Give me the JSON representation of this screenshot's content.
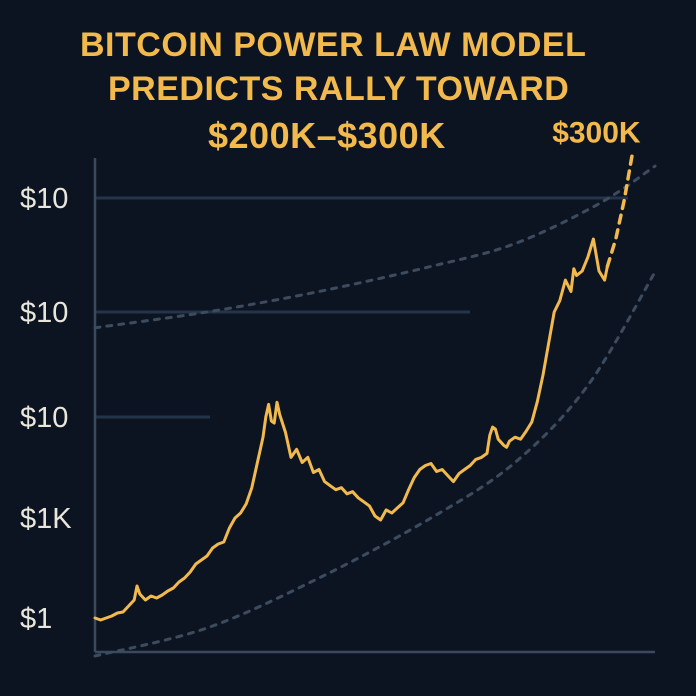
{
  "chart_data": {
    "type": "line",
    "title_lines": [
      "BITCOIN POWER LAW MODEL",
      "PREDICTS RALLY TOWARD",
      "$200K–$300K"
    ],
    "y_scale": "log",
    "y_ticks": [
      {
        "label": "$1",
        "value": 1
      },
      {
        "label": "$1K",
        "value": 2
      },
      {
        "label": "$10",
        "value": 3
      },
      {
        "label": "$10",
        "value": 4
      },
      {
        "label": "$10",
        "value": 5
      }
    ],
    "ylim": [
      0.6,
      5.4
    ],
    "xlim": [
      0,
      100
    ],
    "grid": true,
    "colors": {
      "price": "#f2b94d",
      "band": "#3c4b5e",
      "grid": "#24344a",
      "axis": "#3a4a5e",
      "tick_label": "#e9e6dc",
      "background": "#0d1421"
    },
    "series": [
      {
        "style": "solid",
        "points": [
          [
            0,
            1.0
          ],
          [
            1,
            0.98
          ],
          [
            2,
            1.0
          ],
          [
            3,
            1.02
          ],
          [
            4,
            1.05
          ],
          [
            5,
            1.06
          ],
          [
            6,
            1.12
          ],
          [
            7,
            1.18
          ],
          [
            7.5,
            1.32
          ],
          [
            8,
            1.24
          ],
          [
            9,
            1.18
          ],
          [
            10,
            1.22
          ],
          [
            11,
            1.2
          ],
          [
            12,
            1.23
          ],
          [
            13,
            1.27
          ],
          [
            14,
            1.3
          ],
          [
            15,
            1.36
          ],
          [
            16,
            1.4
          ],
          [
            17,
            1.46
          ],
          [
            18,
            1.54
          ],
          [
            19,
            1.58
          ],
          [
            20,
            1.62
          ],
          [
            21,
            1.7
          ],
          [
            22,
            1.74
          ],
          [
            23,
            1.76
          ],
          [
            24,
            1.9
          ],
          [
            25,
            2.0
          ],
          [
            26,
            2.05
          ],
          [
            27,
            2.14
          ],
          [
            28,
            2.3
          ],
          [
            29,
            2.55
          ],
          [
            30,
            2.8
          ],
          [
            30.5,
            3.0
          ],
          [
            31,
            3.12
          ],
          [
            31.5,
            2.96
          ],
          [
            32,
            2.94
          ],
          [
            32.5,
            3.14
          ],
          [
            33,
            3.02
          ],
          [
            34,
            2.85
          ],
          [
            35,
            2.6
          ],
          [
            36,
            2.68
          ],
          [
            37,
            2.55
          ],
          [
            38,
            2.6
          ],
          [
            39,
            2.45
          ],
          [
            40,
            2.48
          ],
          [
            41,
            2.36
          ],
          [
            42,
            2.32
          ],
          [
            43,
            2.28
          ],
          [
            44,
            2.3
          ],
          [
            45,
            2.24
          ],
          [
            46,
            2.26
          ],
          [
            47,
            2.2
          ],
          [
            48,
            2.16
          ],
          [
            49,
            2.12
          ],
          [
            50,
            2.02
          ],
          [
            51,
            1.98
          ],
          [
            52,
            2.08
          ],
          [
            53,
            2.05
          ],
          [
            54,
            2.1
          ],
          [
            55,
            2.15
          ],
          [
            56,
            2.28
          ],
          [
            57,
            2.4
          ],
          [
            58,
            2.48
          ],
          [
            59,
            2.52
          ],
          [
            60,
            2.54
          ],
          [
            61,
            2.46
          ],
          [
            62,
            2.48
          ],
          [
            63,
            2.42
          ],
          [
            64,
            2.36
          ],
          [
            65,
            2.44
          ],
          [
            66,
            2.48
          ],
          [
            67,
            2.52
          ],
          [
            68,
            2.58
          ],
          [
            69,
            2.6
          ],
          [
            70,
            2.64
          ],
          [
            70.5,
            2.82
          ],
          [
            71,
            2.9
          ],
          [
            71.5,
            2.88
          ],
          [
            72,
            2.78
          ],
          [
            73,
            2.72
          ],
          [
            73.5,
            2.7
          ],
          [
            74,
            2.76
          ],
          [
            75,
            2.8
          ],
          [
            76,
            2.78
          ],
          [
            77,
            2.86
          ],
          [
            78,
            2.95
          ],
          [
            79,
            3.15
          ],
          [
            80,
            3.4
          ],
          [
            81,
            3.7
          ],
          [
            82,
            4.0
          ],
          [
            83,
            4.1
          ],
          [
            84,
            4.28
          ],
          [
            85,
            4.18
          ],
          [
            85.5,
            4.38
          ],
          [
            86,
            4.32
          ],
          [
            87,
            4.36
          ],
          [
            88,
            4.48
          ],
          [
            89,
            4.64
          ],
          [
            89.5,
            4.5
          ],
          [
            90,
            4.36
          ],
          [
            91,
            4.28
          ],
          [
            91.5,
            4.4
          ]
        ]
      },
      {
        "style": "dashed",
        "points": [
          [
            91.5,
            4.4
          ],
          [
            93,
            4.64
          ],
          [
            94.5,
            4.98
          ],
          [
            96,
            5.4
          ]
        ]
      }
    ],
    "bands": [
      {
        "style": "dotted",
        "points": [
          [
            0,
            3.85
          ],
          [
            20,
            4.0
          ],
          [
            40,
            4.18
          ],
          [
            60,
            4.4
          ],
          [
            75,
            4.6
          ],
          [
            90,
            4.95
          ],
          [
            100,
            5.28
          ]
        ]
      },
      {
        "style": "dotted",
        "points": [
          [
            0,
            0.62
          ],
          [
            20,
            0.9
          ],
          [
            40,
            1.4
          ],
          [
            60,
            2.0
          ],
          [
            75,
            2.55
          ],
          [
            88,
            3.3
          ],
          [
            100,
            4.35
          ]
        ]
      }
    ],
    "annotations": [
      {
        "text": "$300K",
        "x": 96,
        "y": 5.4
      }
    ]
  }
}
